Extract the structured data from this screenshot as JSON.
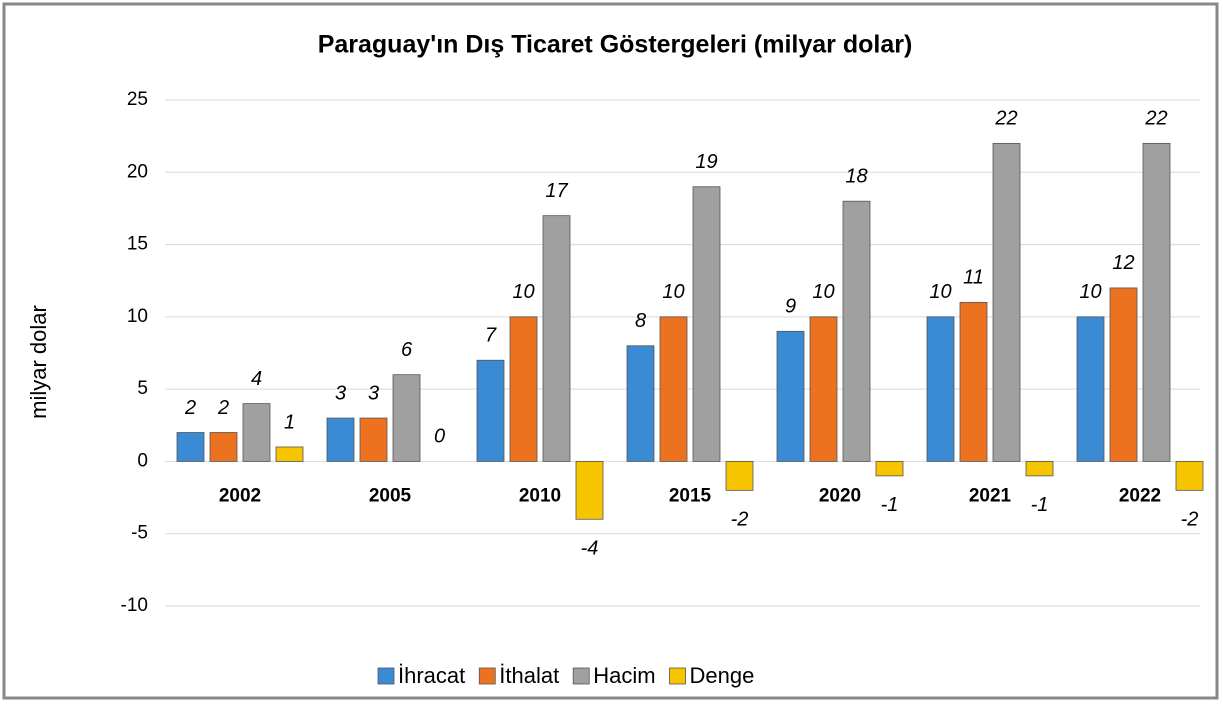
{
  "chart_data": {
    "type": "bar",
    "title": "Paraguay'ın Dış Ticaret Göstergeleri  (milyar dolar)",
    "y_label": "milyar dolar",
    "categories": [
      "2002",
      "2005",
      "2010",
      "2015",
      "2020",
      "2021",
      "2022"
    ],
    "series": [
      {
        "name": "İhracat",
        "color": "#3a8ad4",
        "values": [
          2,
          3,
          7,
          8,
          9,
          10,
          10
        ]
      },
      {
        "name": "İthalat",
        "color": "#ec7220",
        "values": [
          2,
          3,
          10,
          10,
          10,
          11,
          12
        ]
      },
      {
        "name": "Hacim",
        "color": "#a0a0a0",
        "values": [
          4,
          6,
          17,
          19,
          18,
          22,
          22
        ]
      },
      {
        "name": "Denge",
        "color": "#f7c400",
        "values": [
          1,
          0,
          -4,
          -2,
          -1,
          -1,
          -2
        ]
      }
    ],
    "ylim": [
      -10,
      25
    ],
    "yticks": [
      -10,
      -5,
      0,
      5,
      10,
      15,
      20,
      25
    ],
    "grid": true,
    "legend": "bottom"
  }
}
